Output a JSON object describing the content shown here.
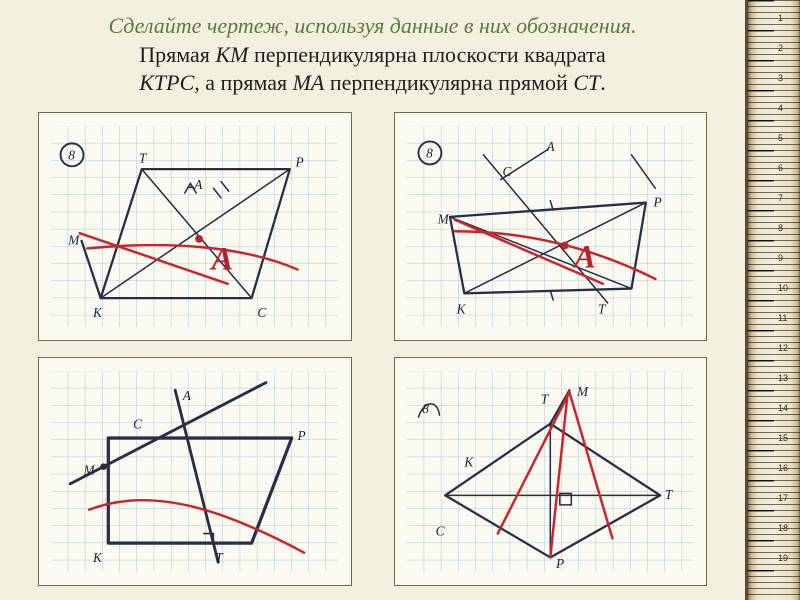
{
  "colors": {
    "page_bg": "#f3f0df",
    "card_bg": "#fbfaf0",
    "card_border": "#6d6d4a",
    "heading_accent": "#5a7a3e",
    "heading_main": "#1e1e1e",
    "ink": "#2a2d4a",
    "red": "#c8262a",
    "grid_line": "#8aa9d6",
    "ruler_face": "#f0e8ce"
  },
  "heading": {
    "line1": "Сделайте чертеж, используя данные в них обозначения.",
    "line2_a": "Прямая ",
    "line2_km": "KM",
    "line2_b": " перпендикулярна плоскости квадрата",
    "line3_a": "KTPC",
    "line3_b": ", а прямая ",
    "line3_ma": "MA",
    "line3_c": " перпендикулярна прямой ",
    "line3_ct": "CT",
    "line3_d": "."
  },
  "ruler": {
    "ticks": [
      "1",
      "2",
      "3",
      "4",
      "5",
      "6",
      "7",
      "8",
      "9",
      "10",
      "11",
      "12",
      "13",
      "14",
      "15",
      "16",
      "17",
      "18",
      "19"
    ]
  },
  "panels": {
    "tl": {
      "badge": "8",
      "labels": {
        "T": "T",
        "P": "P",
        "M": "M",
        "K": "K",
        "C": "C",
        "Asmall": "A",
        "Abig": "A"
      }
    },
    "tr": {
      "badge": "8",
      "labels": {
        "T": "T",
        "P": "P",
        "M": "M",
        "K": "K",
        "C": "C",
        "A": "A",
        "Abig": "A"
      }
    },
    "bl": {
      "labels": {
        "T": "T",
        "P": "P",
        "M": "M",
        "K": "K",
        "C": "C",
        "A": "A"
      }
    },
    "br": {
      "badge": "8",
      "labels": {
        "T": "T",
        "P": "P",
        "M": "M",
        "K": "K",
        "C": "C"
      }
    }
  }
}
